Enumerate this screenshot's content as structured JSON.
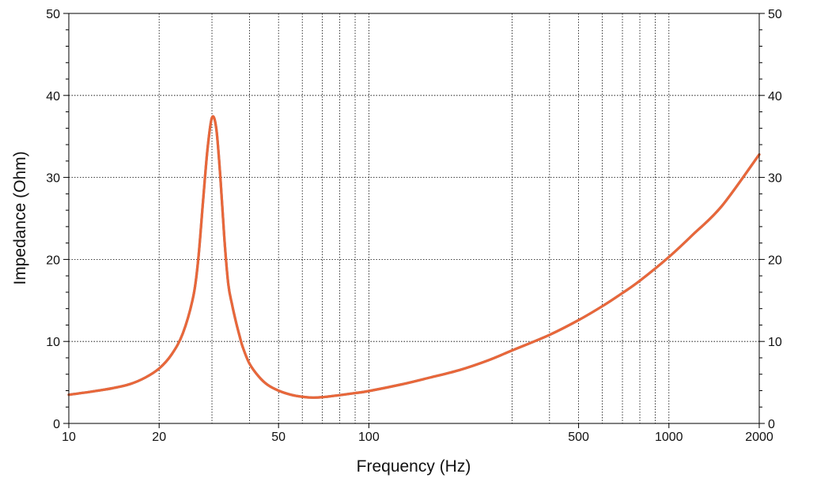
{
  "chart_data": {
    "type": "line",
    "title": "",
    "xlabel": "Frequency (Hz)",
    "ylabel": "Impedance (Ohm)",
    "x_scale": "log",
    "xlim": [
      10,
      2000
    ],
    "ylim": [
      0,
      50
    ],
    "grid": true,
    "x_tick_labels": [
      "10",
      "20",
      "50",
      "100",
      "500",
      "1000",
      "2000"
    ],
    "x_tick_values": [
      10,
      20,
      50,
      100,
      500,
      1000,
      2000
    ],
    "y_tick_labels": [
      "0",
      "10",
      "20",
      "30",
      "40",
      "50"
    ],
    "y_tick_values": [
      0,
      10,
      20,
      30,
      40,
      50
    ],
    "y_axis_right": true,
    "x_gridlines": [
      20,
      30,
      40,
      50,
      60,
      70,
      80,
      90,
      100,
      300,
      400,
      500,
      600,
      700,
      800,
      900,
      1000
    ],
    "series": [
      {
        "color": "#e8673a",
        "x": [
          10,
          12,
          14,
          16,
          18,
          20,
          22,
          24,
          26,
          27,
          28,
          29,
          30,
          31,
          32,
          33,
          34,
          35,
          36,
          37,
          38,
          40,
          43,
          46,
          50,
          55,
          60,
          65,
          70,
          80,
          90,
          100,
          130,
          160,
          200,
          250,
          300,
          400,
          500,
          600,
          700,
          800,
          1000,
          1200,
          1500,
          2000
        ],
        "y": [
          3.5,
          3.9,
          4.3,
          4.8,
          5.6,
          6.7,
          8.4,
          11.0,
          15.5,
          20.0,
          27.0,
          33.5,
          37.3,
          36.0,
          30.0,
          22.5,
          17.0,
          14.5,
          12.5,
          10.8,
          9.3,
          7.3,
          5.7,
          4.7,
          4.0,
          3.5,
          3.25,
          3.15,
          3.2,
          3.45,
          3.7,
          3.95,
          4.8,
          5.6,
          6.5,
          7.7,
          8.9,
          10.8,
          12.6,
          14.3,
          15.9,
          17.4,
          20.3,
          23.0,
          26.5,
          32.8
        ]
      }
    ]
  }
}
